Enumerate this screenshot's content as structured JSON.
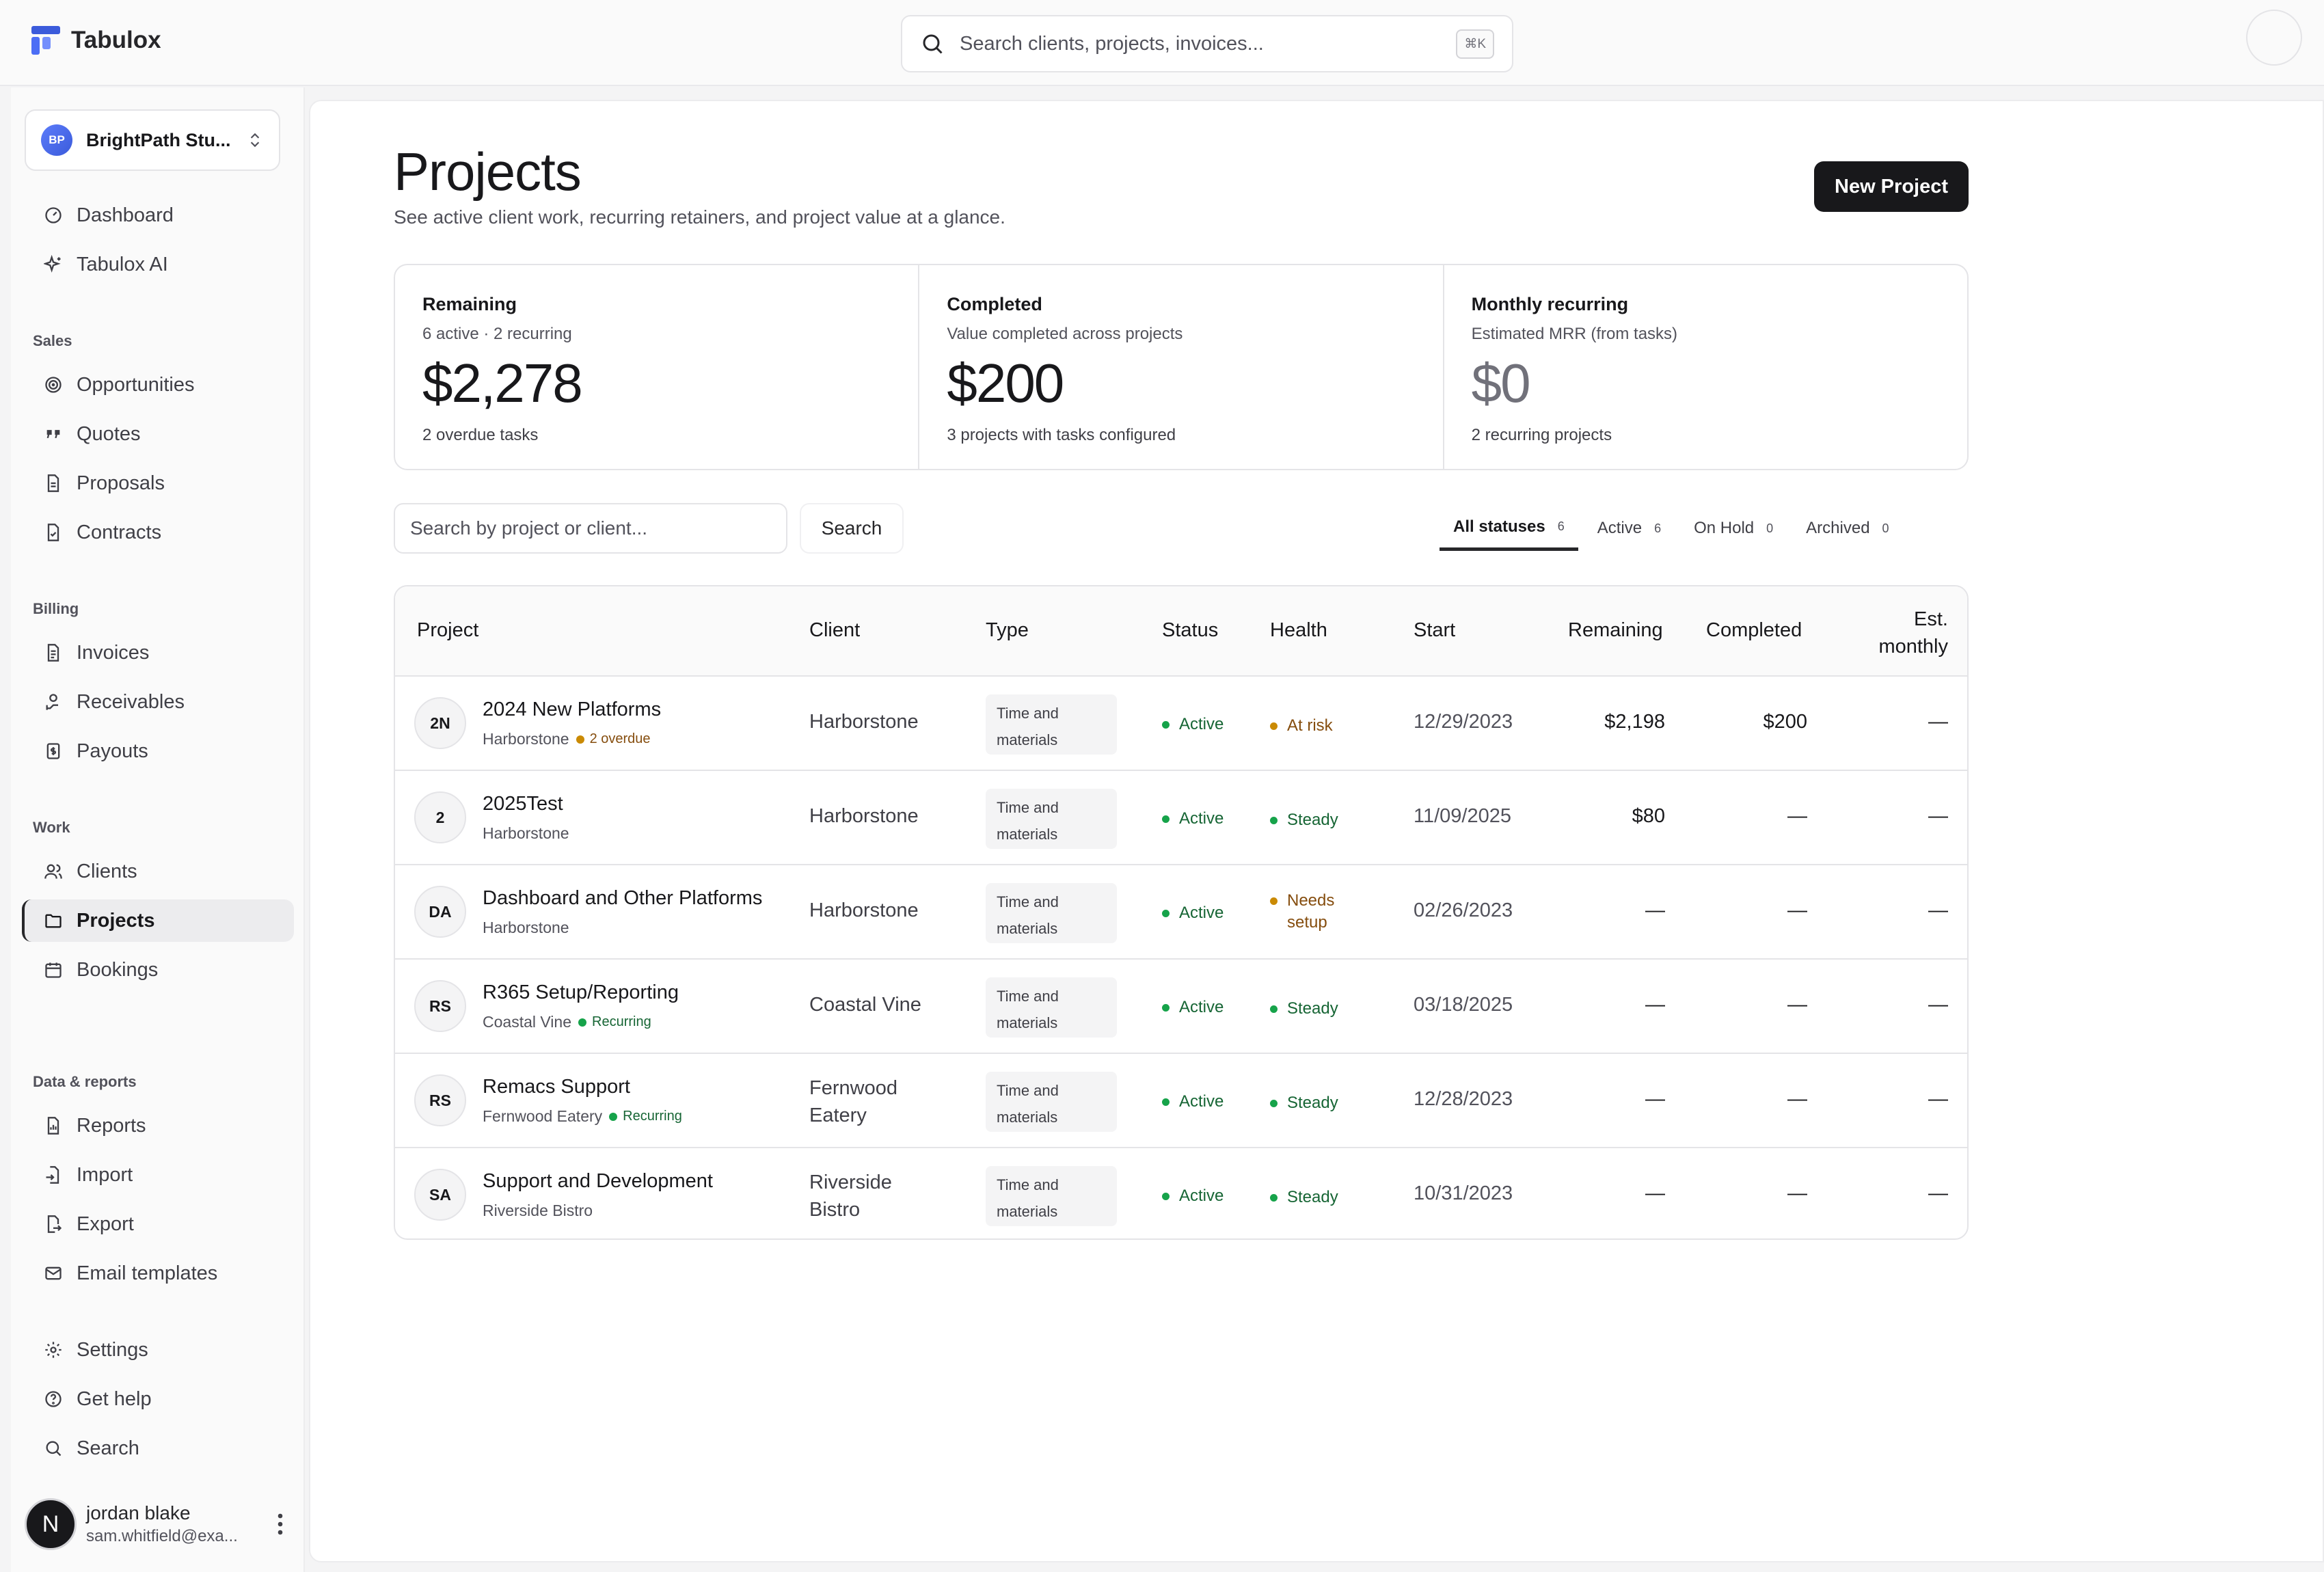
{
  "app": {
    "name": "Tabulox"
  },
  "search": {
    "placeholder": "Search clients, projects, invoices...",
    "shortcut": "⌘K"
  },
  "workspace": {
    "initials": "BP",
    "name": "BrightPath Stu..."
  },
  "nav": {
    "top": [
      {
        "label": "Dashboard"
      },
      {
        "label": "Tabulox AI"
      }
    ],
    "sales_title": "Sales",
    "sales": [
      {
        "label": "Opportunities"
      },
      {
        "label": "Quotes"
      },
      {
        "label": "Proposals"
      },
      {
        "label": "Contracts"
      }
    ],
    "billing_title": "Billing",
    "billing": [
      {
        "label": "Invoices"
      },
      {
        "label": "Receivables"
      },
      {
        "label": "Payouts"
      }
    ],
    "work_title": "Work",
    "work": [
      {
        "label": "Clients"
      },
      {
        "label": "Projects"
      },
      {
        "label": "Bookings"
      }
    ],
    "data_title": "Data & reports",
    "data": [
      {
        "label": "Reports"
      },
      {
        "label": "Import"
      },
      {
        "label": "Export"
      },
      {
        "label": "Email templates"
      }
    ],
    "bottom": [
      {
        "label": "Settings"
      },
      {
        "label": "Get help"
      },
      {
        "label": "Search"
      }
    ]
  },
  "user": {
    "initial": "N",
    "name": "jordan blake",
    "email": "sam.whitfield@exa..."
  },
  "page": {
    "title": "Projects",
    "subtitle": "See active client work, recurring retainers, and project value at a glance.",
    "new_button": "New Project"
  },
  "stats": [
    {
      "title": "Remaining",
      "sub": "6 active · 2 recurring",
      "value": "$2,278",
      "foot": "2 overdue tasks"
    },
    {
      "title": "Completed",
      "sub": "Value completed across projects",
      "value": "$200",
      "foot": "3 projects with tasks configured"
    },
    {
      "title": "Monthly recurring",
      "sub": "Estimated MRR (from tasks)",
      "value": "$0",
      "foot": "2 recurring projects"
    }
  ],
  "filter": {
    "placeholder": "Search by project or client...",
    "button": "Search"
  },
  "tabs": [
    {
      "label": "All statuses",
      "count": "6"
    },
    {
      "label": "Active",
      "count": "6"
    },
    {
      "label": "On Hold",
      "count": "0"
    },
    {
      "label": "Archived",
      "count": "0"
    }
  ],
  "table": {
    "headers": {
      "project": "Project",
      "client": "Client",
      "type": "Type",
      "status": "Status",
      "health": "Health",
      "start": "Start",
      "remaining": "Remaining",
      "completed": "Completed",
      "est1": "Est.",
      "est2": "monthly"
    },
    "rows": [
      {
        "initials": "2N",
        "name": "2024 New Platforms",
        "sub": "Harborstone",
        "tag": "2 overdue",
        "client1": "Harborstone",
        "client2": "",
        "type1": "Time and",
        "type2": "materials",
        "status": "Active",
        "health1": "At risk",
        "health2": "",
        "start": "12/29/2023",
        "remaining": "$2,198",
        "completed": "$200",
        "monthly": "—"
      },
      {
        "initials": "2",
        "name": "2025Test",
        "sub": "Harborstone",
        "tag": "",
        "client1": "Harborstone",
        "client2": "",
        "type1": "Time and",
        "type2": "materials",
        "status": "Active",
        "health1": "Steady",
        "health2": "",
        "start": "11/09/2025",
        "remaining": "$80",
        "completed": "—",
        "monthly": "—"
      },
      {
        "initials": "DA",
        "name": "Dashboard and Other Platforms",
        "sub": "Harborstone",
        "tag": "",
        "client1": "Harborstone",
        "client2": "",
        "type1": "Time and",
        "type2": "materials",
        "status": "Active",
        "health1": "Needs",
        "health2": "setup",
        "start": "02/26/2023",
        "remaining": "—",
        "completed": "—",
        "monthly": "—"
      },
      {
        "initials": "RS",
        "name": "R365 Setup/Reporting",
        "sub": "Coastal Vine",
        "tag": "Recurring",
        "client1": "Coastal Vine",
        "client2": "",
        "type1": "Time and",
        "type2": "materials",
        "status": "Active",
        "health1": "Steady",
        "health2": "",
        "start": "03/18/2025",
        "remaining": "—",
        "completed": "—",
        "monthly": "—"
      },
      {
        "initials": "RS",
        "name": "Remacs Support",
        "sub": "Fernwood Eatery",
        "tag": "Recurring",
        "client1": "Fernwood",
        "client2": "Eatery",
        "type1": "Time and",
        "type2": "materials",
        "status": "Active",
        "health1": "Steady",
        "health2": "",
        "start": "12/28/2023",
        "remaining": "—",
        "completed": "—",
        "monthly": "—"
      },
      {
        "initials": "SA",
        "name": "Support and Development",
        "sub": "Riverside Bistro",
        "tag": "",
        "client1": "Riverside",
        "client2": "Bistro",
        "type1": "Time and",
        "type2": "materials",
        "status": "Active",
        "health1": "Steady",
        "health2": "",
        "start": "10/31/2023",
        "remaining": "—",
        "completed": "—",
        "monthly": "—"
      }
    ]
  }
}
